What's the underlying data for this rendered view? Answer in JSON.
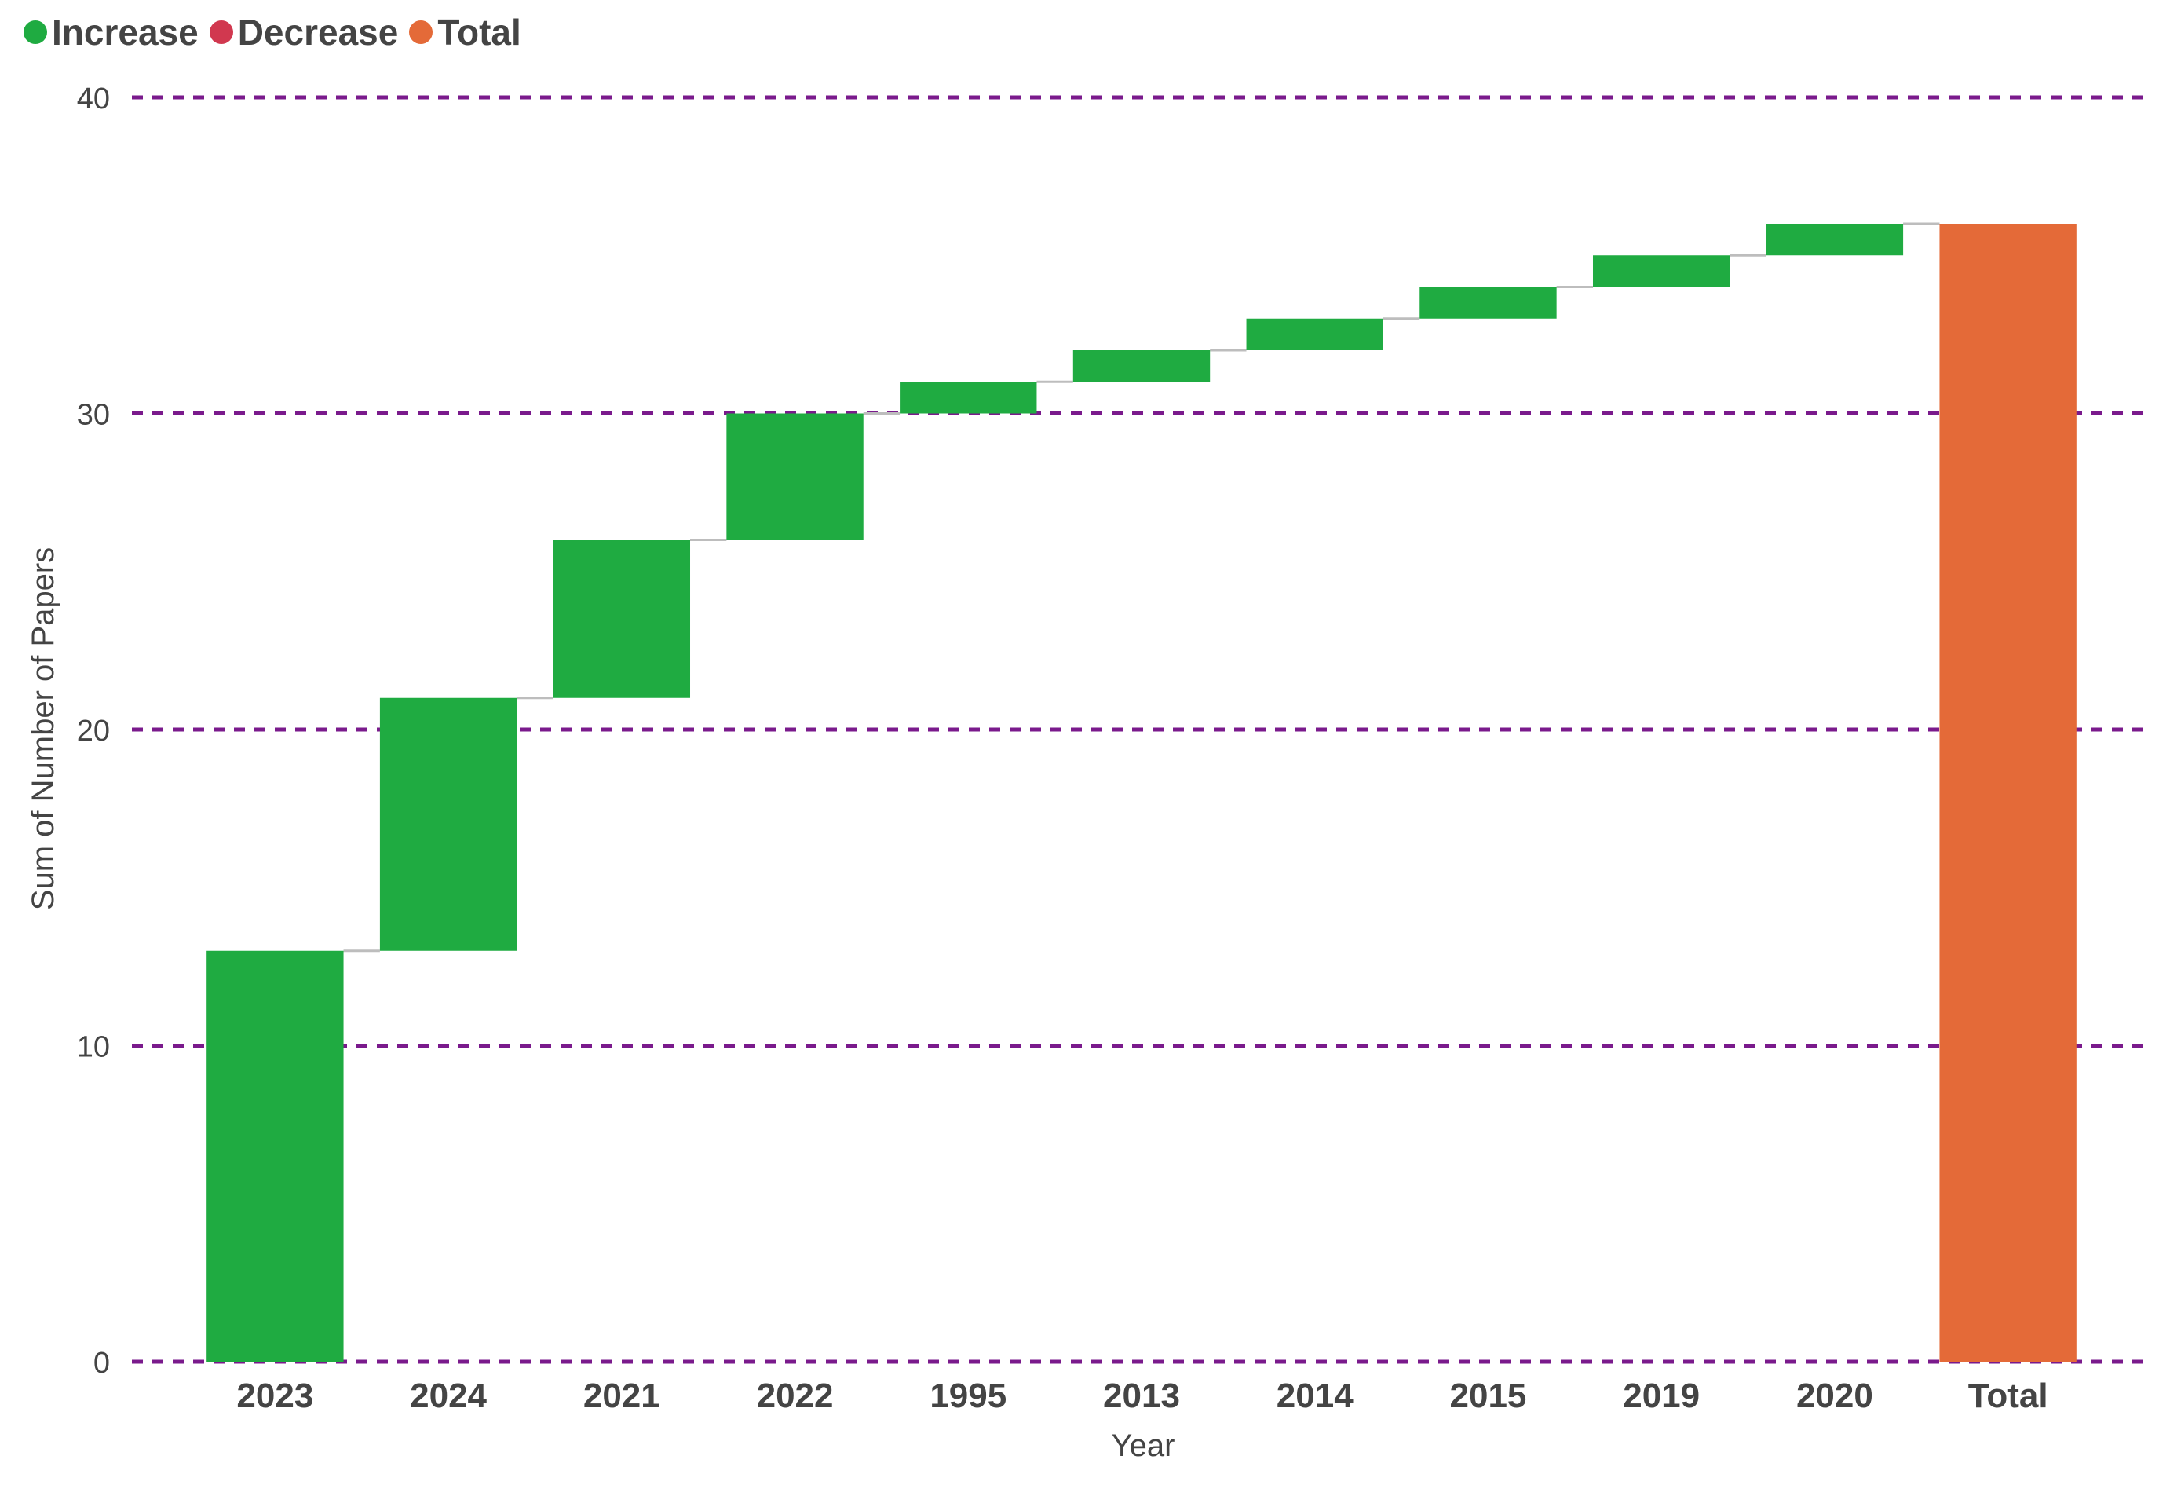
{
  "legend": [
    {
      "label": "Increase",
      "color": "#1fab41"
    },
    {
      "label": "Decrease",
      "color": "#d1384f"
    },
    {
      "label": "Total",
      "color": "#e46a38"
    }
  ],
  "colors": {
    "increase": "#1fab41",
    "decrease": "#d1384f",
    "total": "#e46a38",
    "gridline": "#7a1a8c",
    "connector": "#bdbdbd",
    "axis_text": "#444444"
  },
  "chart_data": {
    "type": "bar",
    "subtype": "waterfall",
    "categories": [
      "2023",
      "2024",
      "2021",
      "2022",
      "1995",
      "2013",
      "2014",
      "2015",
      "2019",
      "2020",
      "Total"
    ],
    "values": [
      13,
      8,
      5,
      4,
      1,
      1,
      1,
      1,
      1,
      1,
      36
    ],
    "kinds": [
      "increase",
      "increase",
      "increase",
      "increase",
      "increase",
      "increase",
      "increase",
      "increase",
      "increase",
      "increase",
      "total"
    ],
    "xlabel": "Year",
    "ylabel": "Sum of Number of Papers",
    "ylim": [
      0,
      40
    ],
    "yticks": [
      0,
      10,
      20,
      30,
      40
    ],
    "grid": true,
    "grid_style": "dashed",
    "legend_position": "top-left"
  }
}
